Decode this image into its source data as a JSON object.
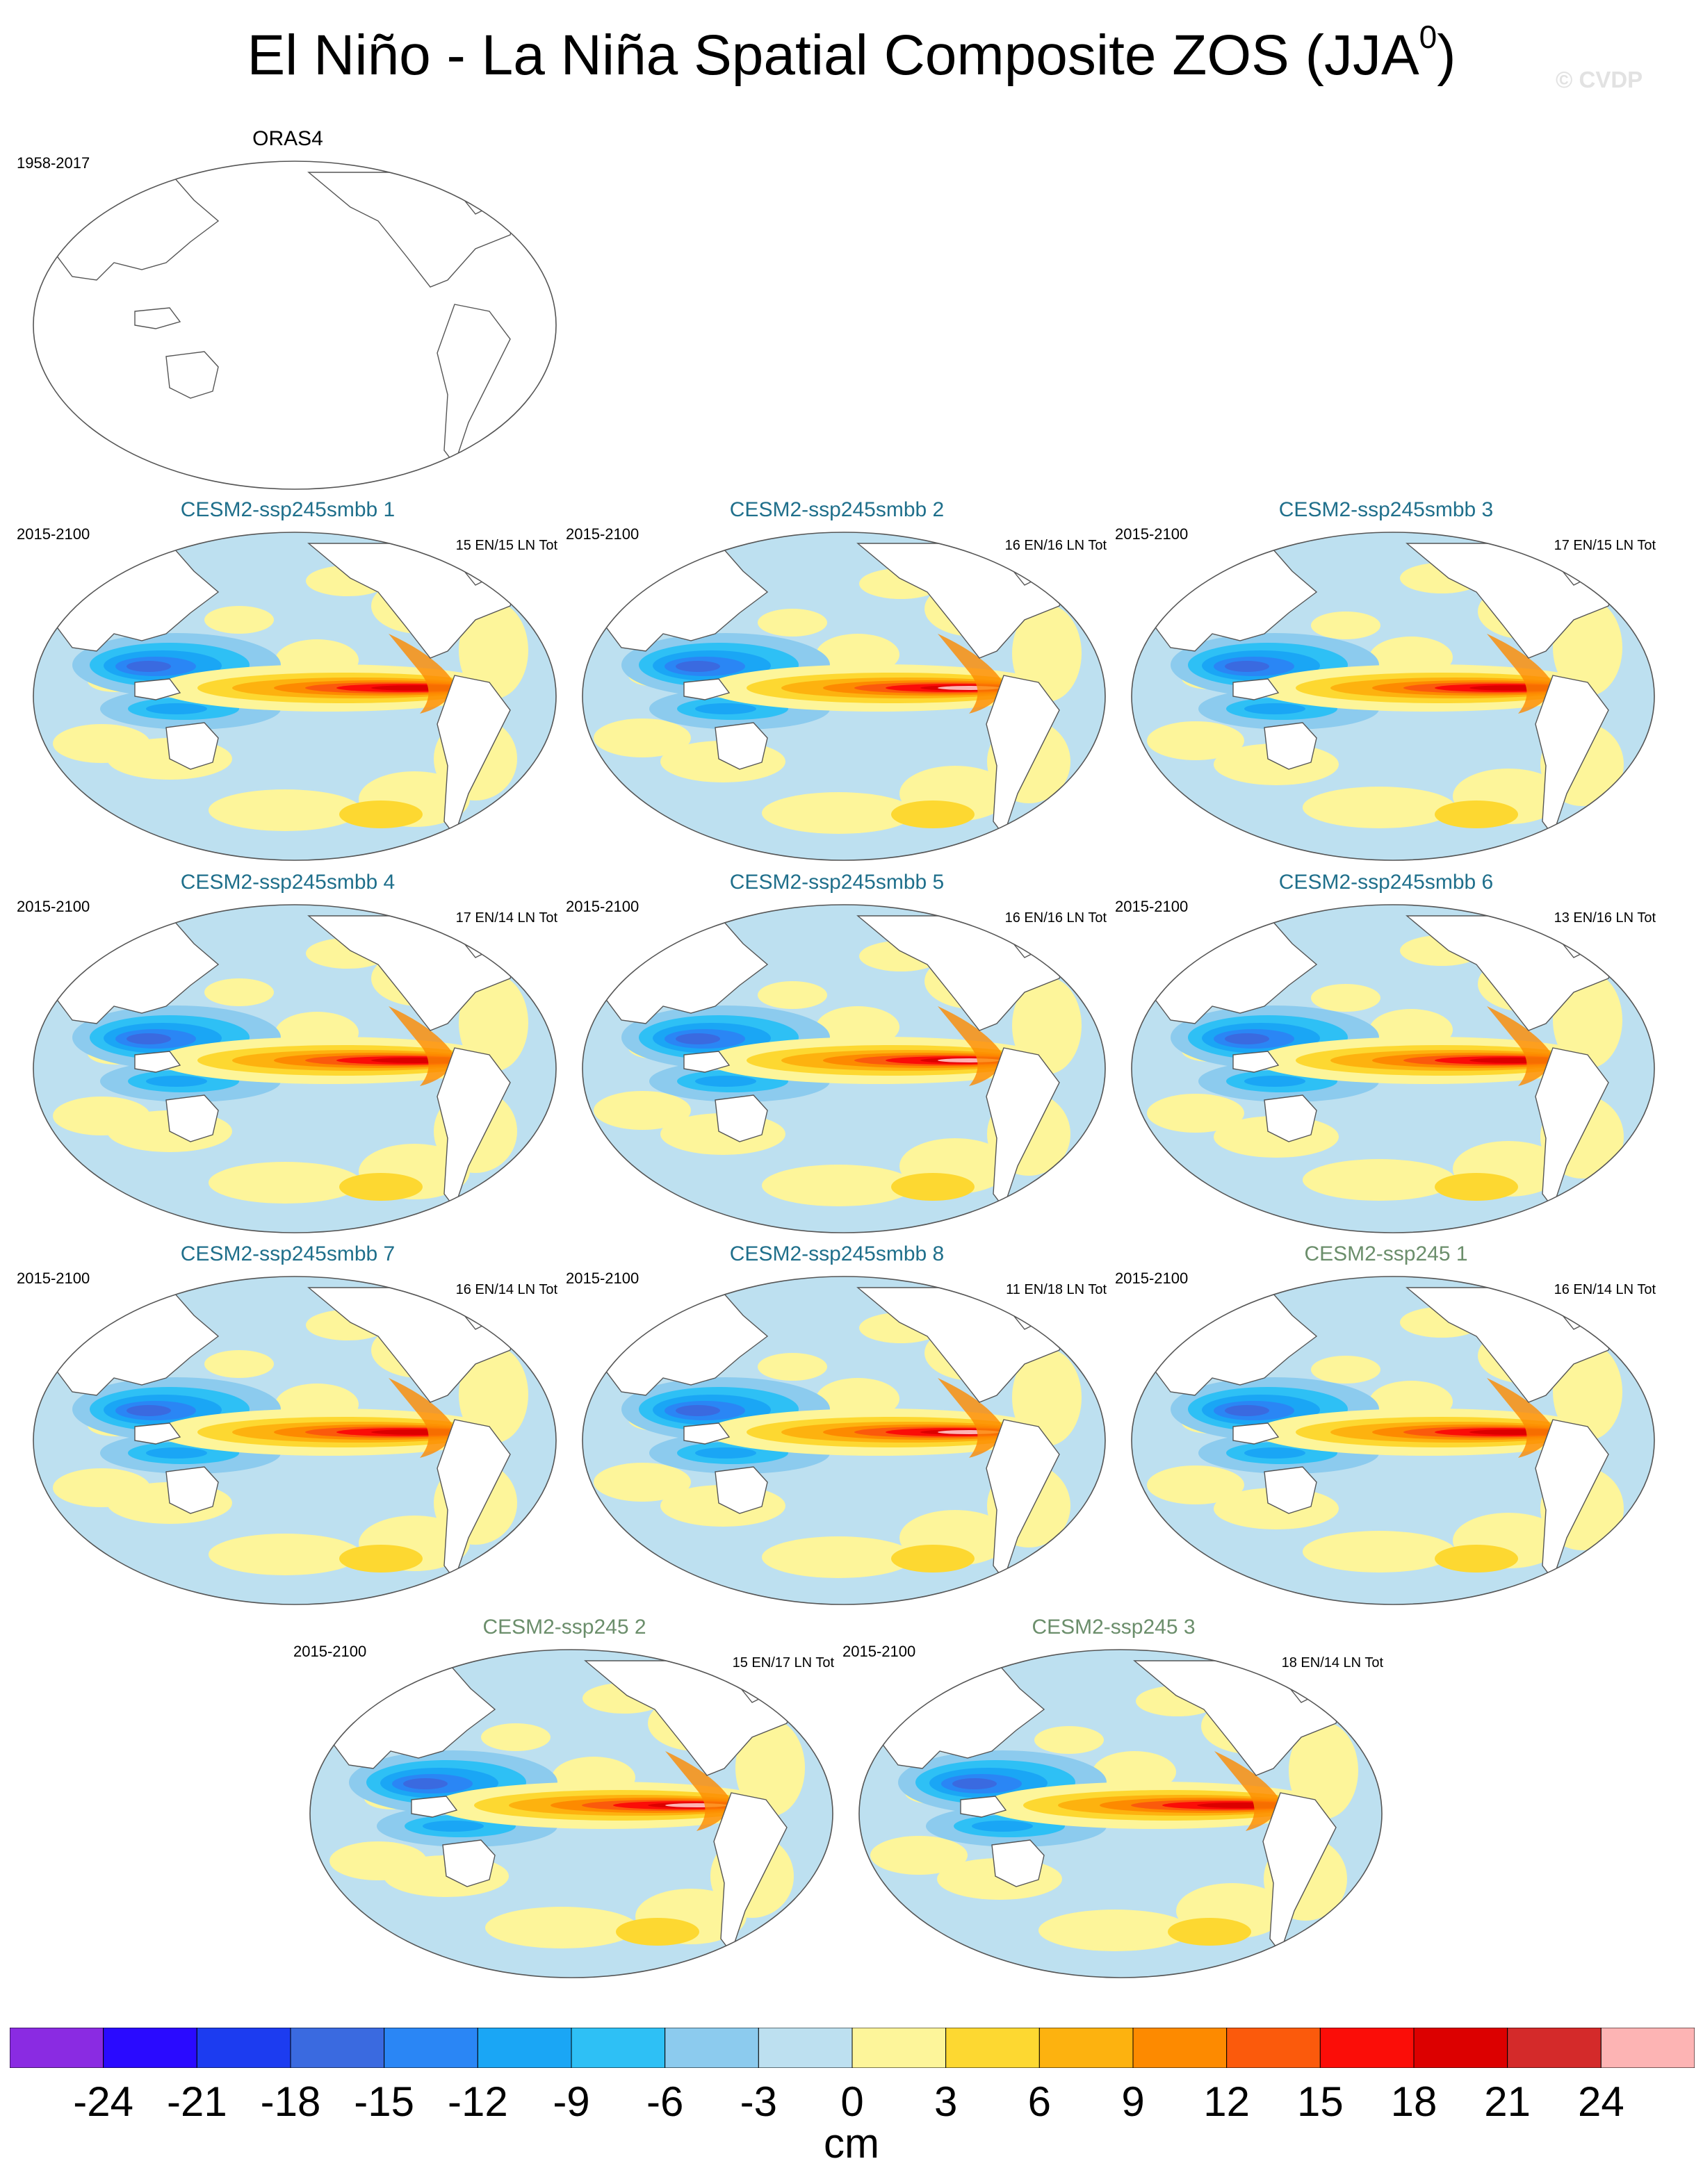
{
  "header": {
    "title": "El Niño - La Niña Spatial Composite ZOS (JJA",
    "title_superscript": "0",
    "title_close": ")",
    "watermark": "© CVDP"
  },
  "panels": [
    {
      "title": "ORAS4",
      "period": "1958-2017",
      "counts": "",
      "title_color": "#000000",
      "filled": false
    },
    {
      "title": "CESM2-ssp245smbb 1",
      "period": "2015-2100",
      "counts": "15 EN/15 LN Tot",
      "title_color": "#1f6f8b",
      "filled": true
    },
    {
      "title": "CESM2-ssp245smbb 2",
      "period": "2015-2100",
      "counts": "16 EN/16 LN Tot",
      "title_color": "#1f6f8b",
      "filled": true
    },
    {
      "title": "CESM2-ssp245smbb 3",
      "period": "2015-2100",
      "counts": "17 EN/15 LN Tot",
      "title_color": "#1f6f8b",
      "filled": true
    },
    {
      "title": "CESM2-ssp245smbb 4",
      "period": "2015-2100",
      "counts": "17 EN/14 LN Tot",
      "title_color": "#1f6f8b",
      "filled": true
    },
    {
      "title": "CESM2-ssp245smbb 5",
      "period": "2015-2100",
      "counts": "16 EN/16 LN Tot",
      "title_color": "#1f6f8b",
      "filled": true
    },
    {
      "title": "CESM2-ssp245smbb 6",
      "period": "2015-2100",
      "counts": "13 EN/16 LN Tot",
      "title_color": "#1f6f8b",
      "filled": true
    },
    {
      "title": "CESM2-ssp245smbb 7",
      "period": "2015-2100",
      "counts": "16 EN/14 LN Tot",
      "title_color": "#1f6f8b",
      "filled": true
    },
    {
      "title": "CESM2-ssp245smbb 8",
      "period": "2015-2100",
      "counts": "11 EN/18 LN Tot",
      "title_color": "#1f6f8b",
      "filled": true
    },
    {
      "title": "CESM2-ssp245 1",
      "period": "2015-2100",
      "counts": "16 EN/14 LN Tot",
      "title_color": "#6b8e6b",
      "filled": true
    },
    {
      "title": "CESM2-ssp245 2",
      "period": "2015-2100",
      "counts": "15 EN/17 LN Tot",
      "title_color": "#6b8e6b",
      "filled": true
    },
    {
      "title": "CESM2-ssp245 3",
      "period": "2015-2100",
      "counts": "18 EN/14 LN Tot",
      "title_color": "#6b8e6b",
      "filled": true
    }
  ],
  "colorbar": {
    "colors": [
      "#8a2be2",
      "#2a0aff",
      "#1c3cf0",
      "#3a6ae0",
      "#2a86f5",
      "#1aa6f5",
      "#2ec0f5",
      "#8ccbee",
      "#bde0f0",
      "#fdf59a",
      "#fdd831",
      "#fdb20f",
      "#fd8a00",
      "#fb5a0c",
      "#fb0d08",
      "#dc0000",
      "#d42a2a",
      "#fdb4b4"
    ],
    "labels": [
      "-24",
      "-21",
      "-18",
      "-15",
      "-12",
      "-9",
      "-6",
      "-3",
      "0",
      "3",
      "6",
      "9",
      "12",
      "15",
      "18",
      "21",
      "24"
    ],
    "unit": "cm"
  },
  "map_colors": {
    "ocean_neg_light": "#bde0f0",
    "ocean_pos_light": "#fdf59a",
    "land": "#ffffff",
    "coast": "#555555"
  }
}
